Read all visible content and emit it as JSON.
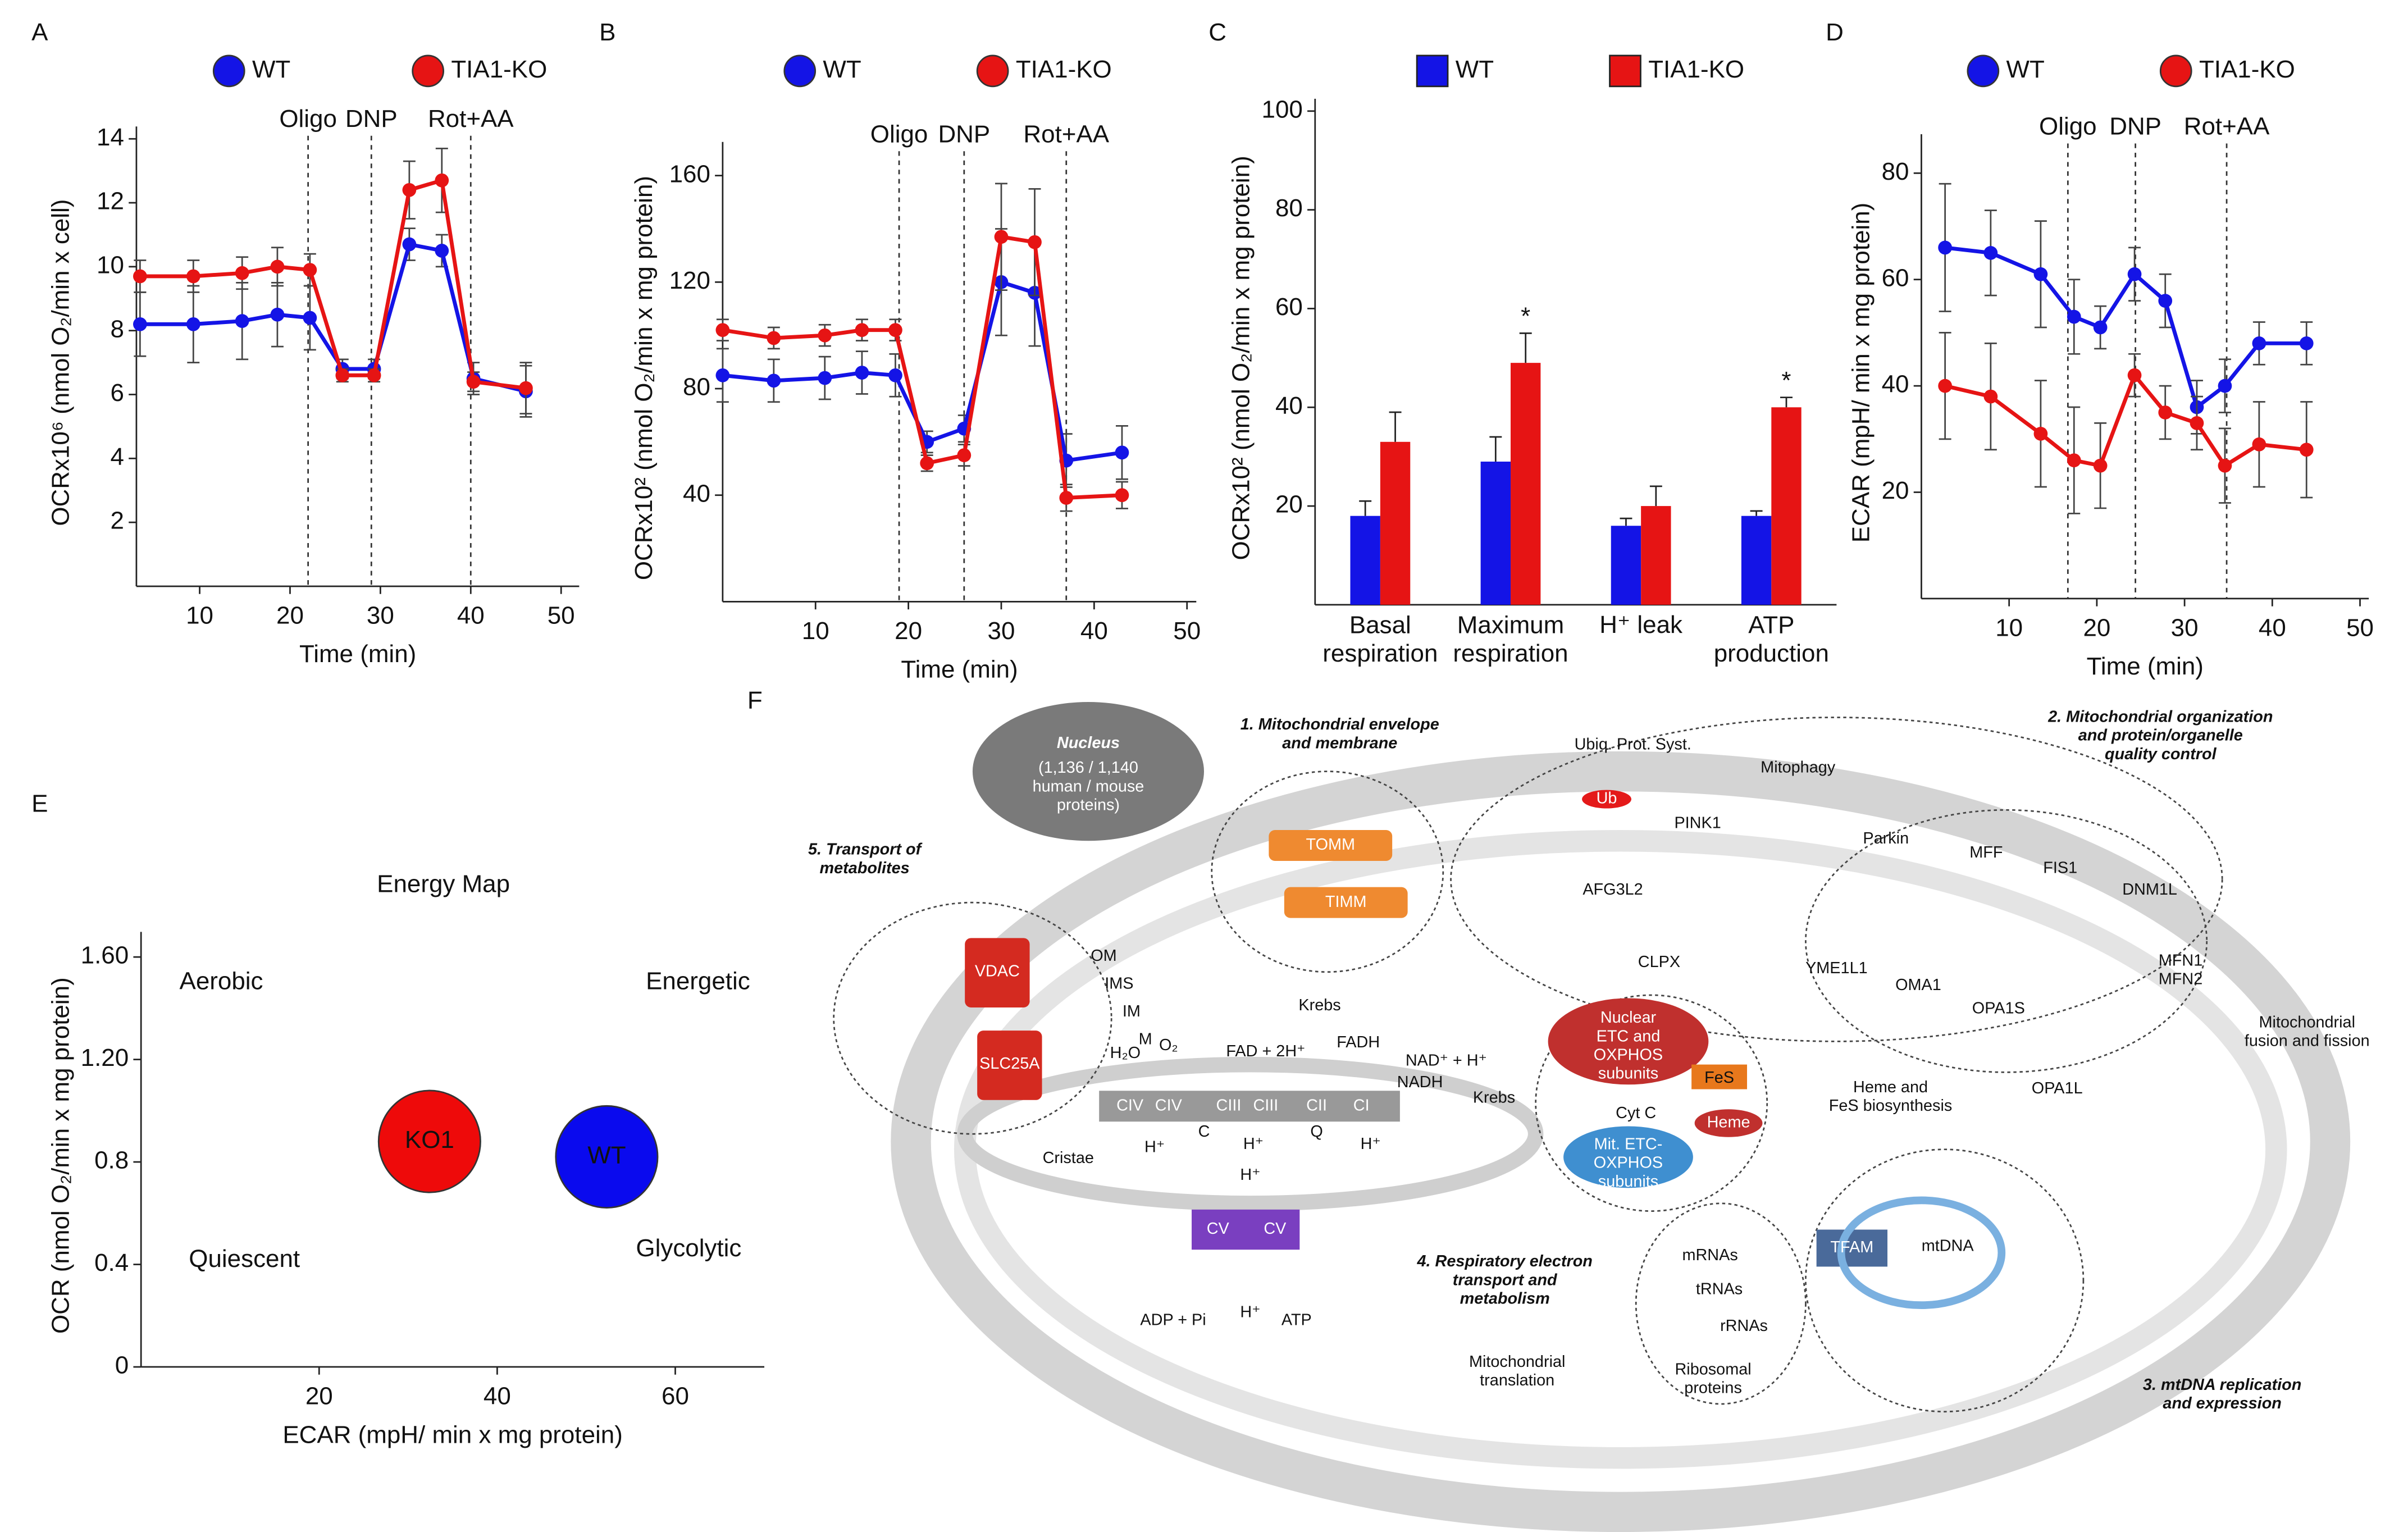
{
  "chart_data": [
    {
      "type": "line",
      "panel": "A",
      "xlabel": "Time (min)",
      "ylabel": "OCRx10⁶ (nmol O₂/min x cell)",
      "x": [
        3.4,
        9.3,
        14.7,
        18.6,
        22.2,
        25.8,
        29.3,
        33.2,
        36.8,
        40.3,
        46.1
      ],
      "series": [
        {
          "name": "WT",
          "color": "#1414e6",
          "values": [
            8.2,
            8.2,
            8.3,
            8.5,
            8.4,
            6.8,
            6.8,
            10.7,
            10.5,
            6.5,
            6.1
          ],
          "errors": [
            1.0,
            1.2,
            1.2,
            1.0,
            1.0,
            0.3,
            0.3,
            0.5,
            0.5,
            0.5,
            0.8
          ]
        },
        {
          "name": "TIA1-KO",
          "color": "#e61414",
          "values": [
            9.7,
            9.7,
            9.8,
            10.0,
            9.9,
            6.6,
            6.6,
            12.4,
            12.7,
            6.4,
            6.2
          ],
          "errors": [
            0.5,
            0.5,
            0.5,
            0.6,
            0.5,
            0.2,
            0.2,
            0.9,
            1.0,
            0.3,
            0.8
          ]
        }
      ],
      "events": [
        {
          "label": "Oligo",
          "x": 22
        },
        {
          "label": "DNP",
          "x": 29
        },
        {
          "label": "Rot+AA",
          "x": 40
        }
      ],
      "xlim": [
        3,
        52
      ],
      "ylim": [
        0,
        14
      ],
      "xticks": [
        10,
        20,
        30,
        40,
        50
      ],
      "yticks": [
        2,
        4,
        6,
        8,
        10,
        12,
        14
      ]
    },
    {
      "type": "line",
      "panel": "B",
      "xlabel": "Time (min)",
      "ylabel": "OCRx10² (nmol O₂/min x mg protein)",
      "x": [
        0,
        5.5,
        11,
        15,
        18.6,
        22,
        26,
        30,
        33.6,
        37,
        43
      ],
      "series": [
        {
          "name": "WT",
          "color": "#1414e6",
          "values": [
            85,
            83,
            84,
            86,
            85,
            60,
            65,
            120,
            116,
            53,
            56
          ],
          "errors": [
            10,
            8,
            8,
            8,
            8,
            4,
            5,
            20,
            20,
            10,
            10
          ]
        },
        {
          "name": "TIA1-KO",
          "color": "#e61414",
          "values": [
            102,
            99,
            100,
            102,
            102,
            52,
            55,
            137,
            135,
            39,
            40
          ],
          "errors": [
            4,
            4,
            4,
            4,
            4,
            3,
            4,
            20,
            20,
            5,
            5
          ]
        }
      ],
      "events": [
        {
          "label": "Oligo",
          "x": 19
        },
        {
          "label": "DNP",
          "x": 26
        },
        {
          "label": "Rot+AA",
          "x": 37
        }
      ],
      "xlim": [
        0,
        51
      ],
      "ylim": [
        0,
        168
      ],
      "xticks": [
        10,
        20,
        30,
        40,
        50
      ],
      "yticks": [
        40,
        80,
        120,
        160
      ]
    },
    {
      "type": "bar",
      "panel": "C",
      "ylabel": "OCRx10² (nmol O₂/min x mg protein)",
      "categories": [
        "Basal\nrespiration",
        "Maximum\nrespiration",
        "H⁺ leak",
        "ATP\nproduction"
      ],
      "series": [
        {
          "name": "WT",
          "color": "#1414e6",
          "values": [
            18,
            29,
            16,
            18
          ],
          "errors": [
            3,
            5,
            1.5,
            1
          ]
        },
        {
          "name": "TIA1-KO",
          "color": "#e61414",
          "values": [
            33,
            49,
            20,
            40
          ],
          "errors": [
            6,
            6,
            4,
            2
          ],
          "significance": [
            null,
            "*",
            null,
            "*"
          ]
        }
      ],
      "ylim": [
        0,
        100
      ],
      "yticks": [
        20,
        40,
        60,
        80,
        100
      ]
    },
    {
      "type": "line",
      "panel": "D",
      "xlabel": "Time (min)",
      "ylabel": "ECAR (mpH/ min x mg protein)",
      "x": [
        2.7,
        7.9,
        13.6,
        17.4,
        20.4,
        24.3,
        27.8,
        31.4,
        34.6,
        38.5,
        43.9
      ],
      "series": [
        {
          "name": "WT",
          "color": "#1414e6",
          "values": [
            66,
            65,
            61,
            53,
            51,
            61,
            56,
            36,
            40,
            48,
            48
          ],
          "errors": [
            12,
            8,
            10,
            7,
            4,
            5,
            5,
            5,
            5,
            4,
            4
          ]
        },
        {
          "name": "TIA1-KO",
          "color": "#e61414",
          "values": [
            40,
            38,
            31,
            26,
            25,
            42,
            35,
            33,
            25,
            29,
            28
          ],
          "errors": [
            10,
            10,
            10,
            10,
            8,
            4,
            5,
            5,
            7,
            8,
            9
          ]
        }
      ],
      "events": [
        {
          "label": "Oligo",
          "x": 16.7
        },
        {
          "label": "DNP",
          "x": 24.4
        },
        {
          "label": "Rot+AA",
          "x": 34.8
        }
      ],
      "xlim": [
        0,
        51
      ],
      "ylim": [
        0,
        85
      ],
      "xticks": [
        10,
        20,
        30,
        40,
        50
      ],
      "yticks": [
        20,
        40,
        60,
        80
      ]
    },
    {
      "type": "scatter",
      "panel": "E",
      "title": "Energy Map",
      "xlabel": "ECAR (mpH/ min x mg protein)",
      "ylabel": "OCR (nmol O₂/min x mg protein)",
      "quadrant_labels": [
        "Aerobic",
        "Energetic",
        "Quiescent",
        "Glycolytic"
      ],
      "points": [
        {
          "label": "KO1",
          "x": 32.4,
          "y": 0.88,
          "color": "#ee0a0a"
        },
        {
          "label": "WT",
          "x": 52.3,
          "y": 0.82,
          "color": "#0a0aee"
        }
      ],
      "xlim": [
        0,
        70
      ],
      "ylim": [
        0,
        1.65
      ],
      "xticks": [
        20,
        40,
        60
      ],
      "yticks": [
        0,
        0.4,
        0.8,
        {
          "value": 1.2,
          "label": "1.20"
        },
        {
          "value": 1.6,
          "label": "1.60"
        }
      ]
    }
  ],
  "diagram": {
    "panel": "F",
    "labels": [
      "1. Mitochondrial envelope\nand membrane",
      "2. Mitochondrial organization\nand protein/organelle\nquality control",
      "3. mtDNA replication\nand expression",
      "4. Respiratory electron\ntransport and\nmetabolism",
      "5. Transport of\nmetabolites",
      "Nucleus",
      "(1,136 / 1,140\nhuman / mouse\nproteins)",
      "TOMM",
      "TIMM",
      "VDAC",
      "SLC25A",
      "OM",
      "IMS",
      "IM",
      "M",
      "Ubiq. Prot. Syst.",
      "Ub",
      "Mitophagy",
      "Parkin",
      "PINK1",
      "AFG3L2",
      "CLPX",
      "MFF",
      "FIS1",
      "DNM1L",
      "YME1L1",
      "OMA1",
      "OPA1S",
      "OPA1L",
      "MFN1\nMFN2",
      "Mitochondrial\nfusion and fission",
      "Krebs",
      "FAD + 2H⁺",
      "FADH",
      "NAD⁺ + H⁺",
      "NADH",
      "Krebs",
      "H₂O",
      "O₂",
      "CIV",
      "CIV",
      "CIII",
      "CIII",
      "CII",
      "CI",
      "C",
      "Q",
      "H⁺",
      "H⁺",
      "H⁺",
      "Cristae",
      "H⁺",
      "CV",
      "CV",
      "ADP + Pi",
      "H⁺",
      "ATP",
      "Nuclear\nETC and\nOXPHOS\nsubunits",
      "FeS",
      "Cyt C",
      "Heme",
      "Mit. ETC-\nOXPHOS\nsubunits",
      "Heme and\nFeS biosynthesis",
      "mRNAs",
      "tRNAs",
      "rRNAs",
      "Ribosomal\nproteins",
      "Mitochondrial\ntranslation",
      "TFAM",
      "mtDNA"
    ]
  }
}
